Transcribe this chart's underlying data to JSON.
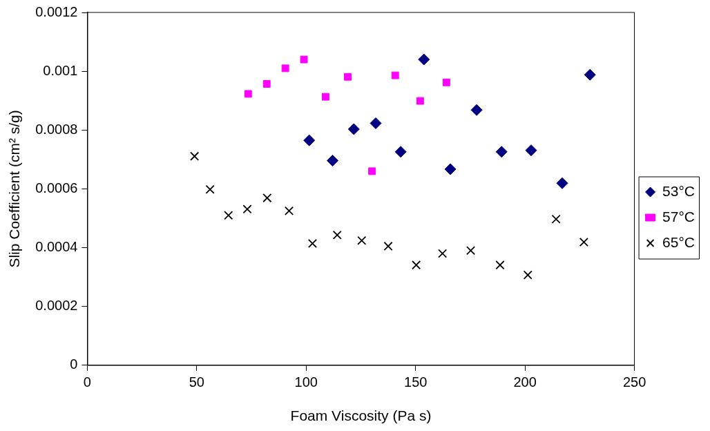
{
  "chart_data": {
    "type": "scatter",
    "xlabel": "Foam Viscosity (Pa s)",
    "ylabel": "Slip Coefficient (cm² s/g)",
    "xlim": [
      0,
      250
    ],
    "xticks": [
      0,
      50,
      100,
      150,
      200,
      250
    ],
    "ylim": [
      0,
      0.0012
    ],
    "yticks": [
      0,
      0.0002,
      0.0004,
      0.0006,
      0.0008,
      0.001,
      0.0012
    ],
    "grid": false,
    "legend": "right",
    "series": [
      {
        "name": "53°C",
        "color": "#000080",
        "marker": "diamond",
        "x": [
          101.4,
          112.1,
          121.8,
          131.8,
          143.2,
          153.8,
          165.9,
          177.9,
          189.3,
          202.8,
          217.0,
          229.7
        ],
        "values": [
          0.000765,
          0.000696,
          0.000803,
          0.000823,
          0.000726,
          0.00104,
          0.000667,
          0.000868,
          0.000726,
          0.000731,
          0.000619,
          0.000988
        ]
      },
      {
        "name": "57°C",
        "color": "#ff00ff",
        "marker": "square",
        "x": [
          73.5,
          82.0,
          90.5,
          99.0,
          108.9,
          119.0,
          130.1,
          140.7,
          152.1,
          164.1
        ],
        "values": [
          0.000923,
          0.000957,
          0.00101,
          0.00104,
          0.000913,
          0.000981,
          0.00066,
          0.000986,
          0.000899,
          0.000962
        ]
      },
      {
        "name": "65°C",
        "color": "#000000",
        "marker": "cross",
        "x": [
          49.0,
          56.1,
          64.5,
          73.1,
          82.2,
          92.2,
          102.9,
          114.2,
          125.4,
          137.5,
          150.3,
          162.3,
          175.2,
          188.6,
          201.3,
          214.2,
          226.9
        ],
        "values": [
          0.000711,
          0.000598,
          0.00051,
          0.000531,
          0.000569,
          0.000525,
          0.000414,
          0.000443,
          0.000424,
          0.000405,
          0.000341,
          0.00038,
          0.00039,
          0.000341,
          0.000307,
          0.000497,
          0.000419
        ]
      }
    ]
  }
}
